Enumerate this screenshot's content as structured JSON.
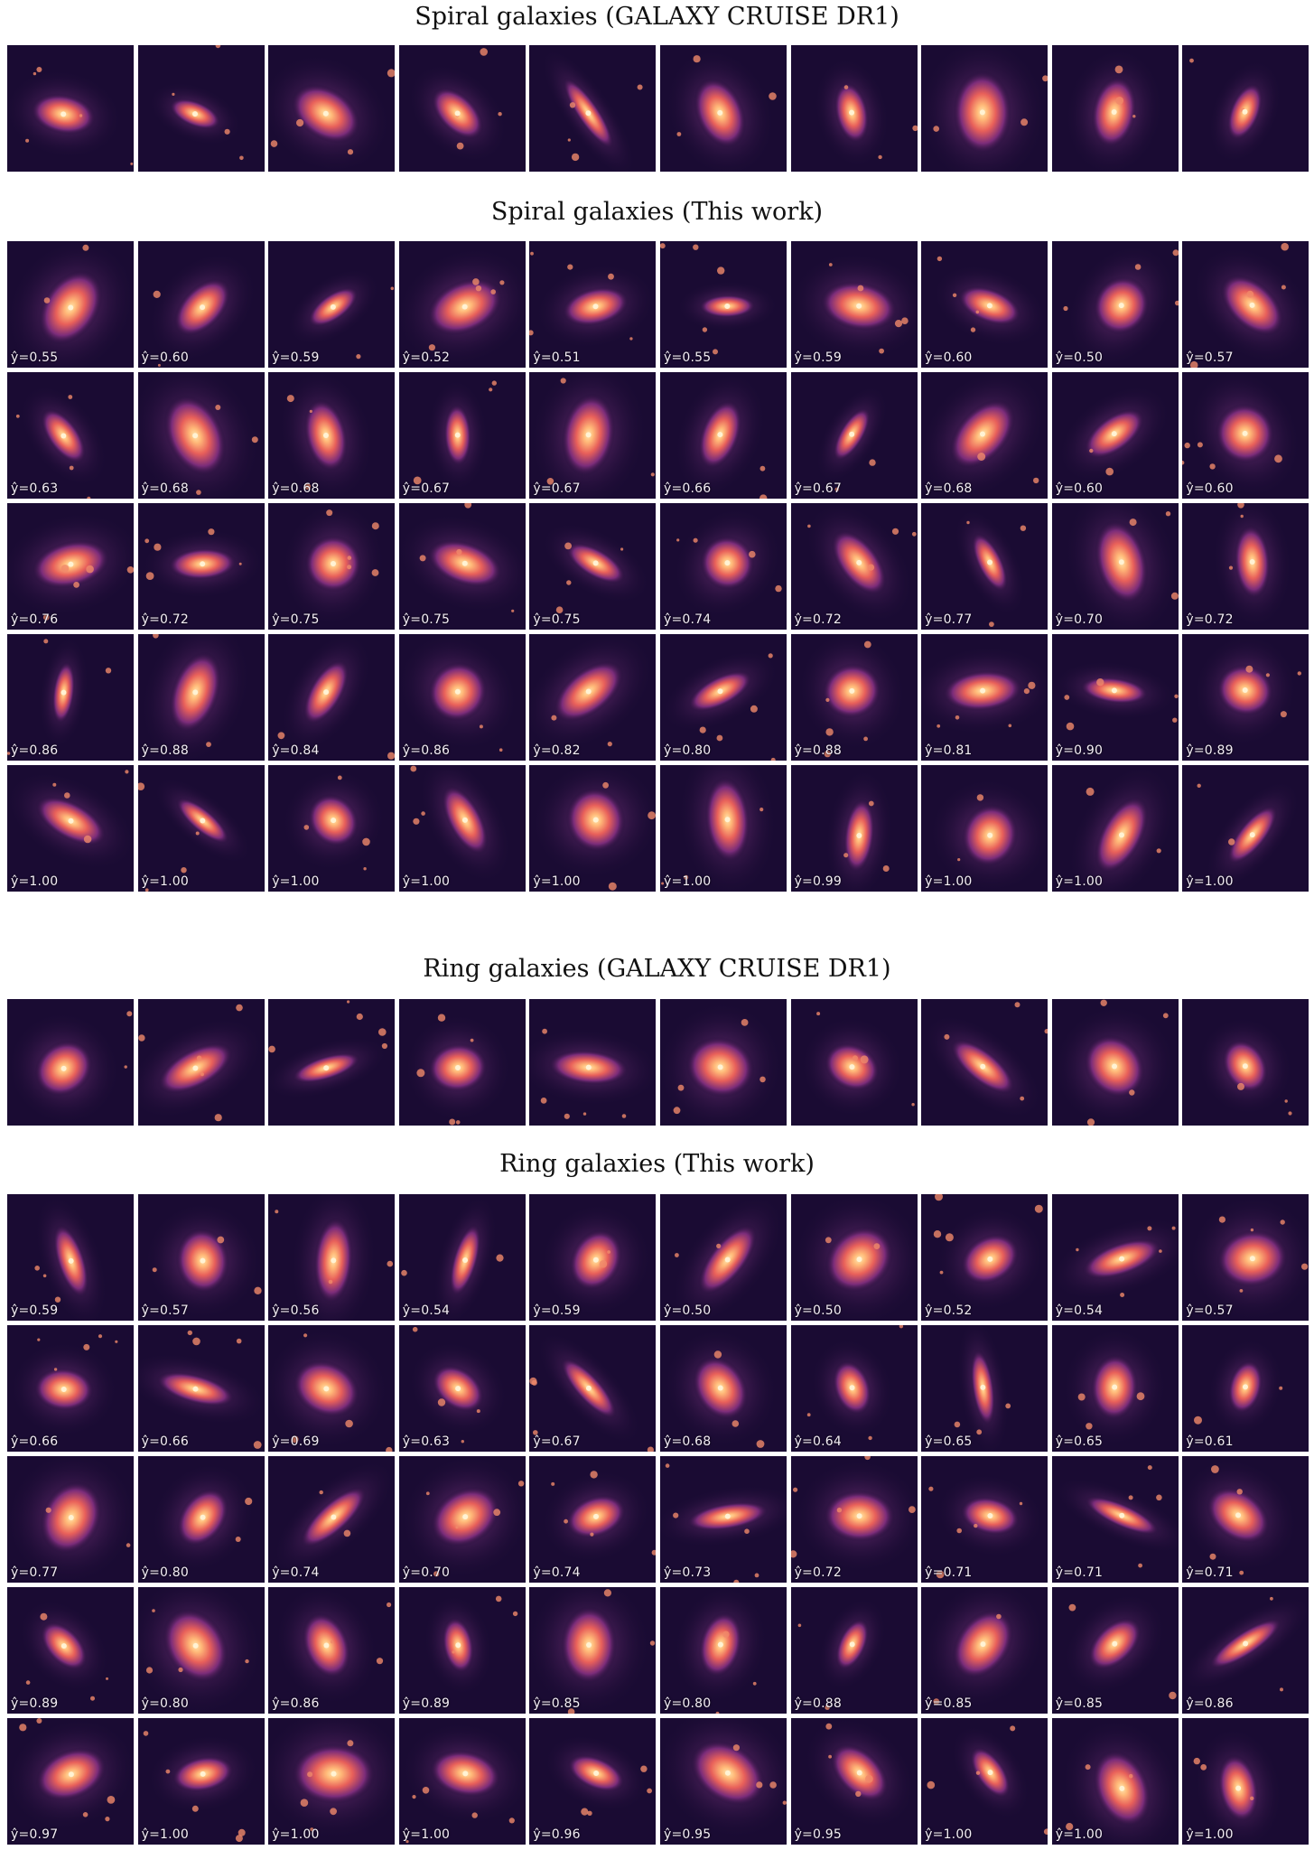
{
  "sections": [
    {
      "title": "Spiral galaxies (GALAXY CRUISE DR1)",
      "rows": [
        [
          {
            "label": ""
          },
          {
            "label": ""
          },
          {
            "label": ""
          },
          {
            "label": ""
          },
          {
            "label": ""
          },
          {
            "label": ""
          },
          {
            "label": ""
          },
          {
            "label": ""
          },
          {
            "label": ""
          },
          {
            "label": ""
          }
        ]
      ]
    },
    {
      "title": "Spiral galaxies (This work)",
      "rows": [
        [
          "ŷ=0.55",
          "ŷ=0.60",
          "ŷ=0.59",
          "ŷ=0.52",
          "ŷ=0.51",
          "ŷ=0.55",
          "ŷ=0.59",
          "ŷ=0.60",
          "ŷ=0.50",
          "ŷ=0.57"
        ],
        [
          "ŷ=0.63",
          "ŷ=0.68",
          "ŷ=0.68",
          "ŷ=0.67",
          "ŷ=0.67",
          "ŷ=0.66",
          "ŷ=0.67",
          "ŷ=0.68",
          "ŷ=0.60",
          "ŷ=0.60"
        ],
        [
          "ŷ=0.76",
          "ŷ=0.72",
          "ŷ=0.75",
          "ŷ=0.75",
          "ŷ=0.75",
          "ŷ=0.74",
          "ŷ=0.72",
          "ŷ=0.77",
          "ŷ=0.70",
          "ŷ=0.72"
        ],
        [
          "ŷ=0.86",
          "ŷ=0.88",
          "ŷ=0.84",
          "ŷ=0.86",
          "ŷ=0.82",
          "ŷ=0.80",
          "ŷ=0.88",
          "ŷ=0.81",
          "ŷ=0.90",
          "ŷ=0.89"
        ],
        [
          "ŷ=1.00",
          "ŷ=1.00",
          "ŷ=1.00",
          "ŷ=1.00",
          "ŷ=1.00",
          "ŷ=1.00",
          "ŷ=0.99",
          "ŷ=1.00",
          "ŷ=1.00",
          "ŷ=1.00"
        ]
      ]
    },
    {
      "title": "Ring galaxies (GALAXY CRUISE DR1)",
      "rows": [
        [
          {
            "label": ""
          },
          {
            "label": ""
          },
          {
            "label": ""
          },
          {
            "label": ""
          },
          {
            "label": ""
          },
          {
            "label": ""
          },
          {
            "label": ""
          },
          {
            "label": ""
          },
          {
            "label": ""
          },
          {
            "label": ""
          }
        ]
      ]
    },
    {
      "title": "Ring galaxies (This work)",
      "rows": [
        [
          "ŷ=0.59",
          "ŷ=0.57",
          "ŷ=0.56",
          "ŷ=0.54",
          "ŷ=0.59",
          "ŷ=0.50",
          "ŷ=0.50",
          "ŷ=0.52",
          "ŷ=0.54",
          "ŷ=0.57"
        ],
        [
          "ŷ=0.66",
          "ŷ=0.66",
          "ŷ=0.69",
          "ŷ=0.63",
          "ŷ=0.67",
          "ŷ=0.68",
          "ŷ=0.64",
          "ŷ=0.65",
          "ŷ=0.65",
          "ŷ=0.61"
        ],
        [
          "ŷ=0.77",
          "ŷ=0.80",
          "ŷ=0.74",
          "ŷ=0.70",
          "ŷ=0.74",
          "ŷ=0.73",
          "ŷ=0.72",
          "ŷ=0.71",
          "ŷ=0.71",
          "ŷ=0.71"
        ],
        [
          "ŷ=0.89",
          "ŷ=0.80",
          "ŷ=0.86",
          "ŷ=0.89",
          "ŷ=0.85",
          "ŷ=0.80",
          "ŷ=0.88",
          "ŷ=0.85",
          "ŷ=0.85",
          "ŷ=0.86"
        ],
        [
          "ŷ=0.97",
          "ŷ=1.00",
          "ŷ=1.00",
          "ŷ=1.00",
          "ŷ=0.96",
          "ŷ=0.95",
          "ŷ=0.95",
          "ŷ=1.00",
          "ŷ=1.00",
          "ŷ=1.00"
        ]
      ]
    }
  ],
  "colors": {
    "background": "#1a0b33",
    "mid": "#7b2c7a",
    "glow": "#e8605a",
    "core": "#ffe9b0"
  }
}
